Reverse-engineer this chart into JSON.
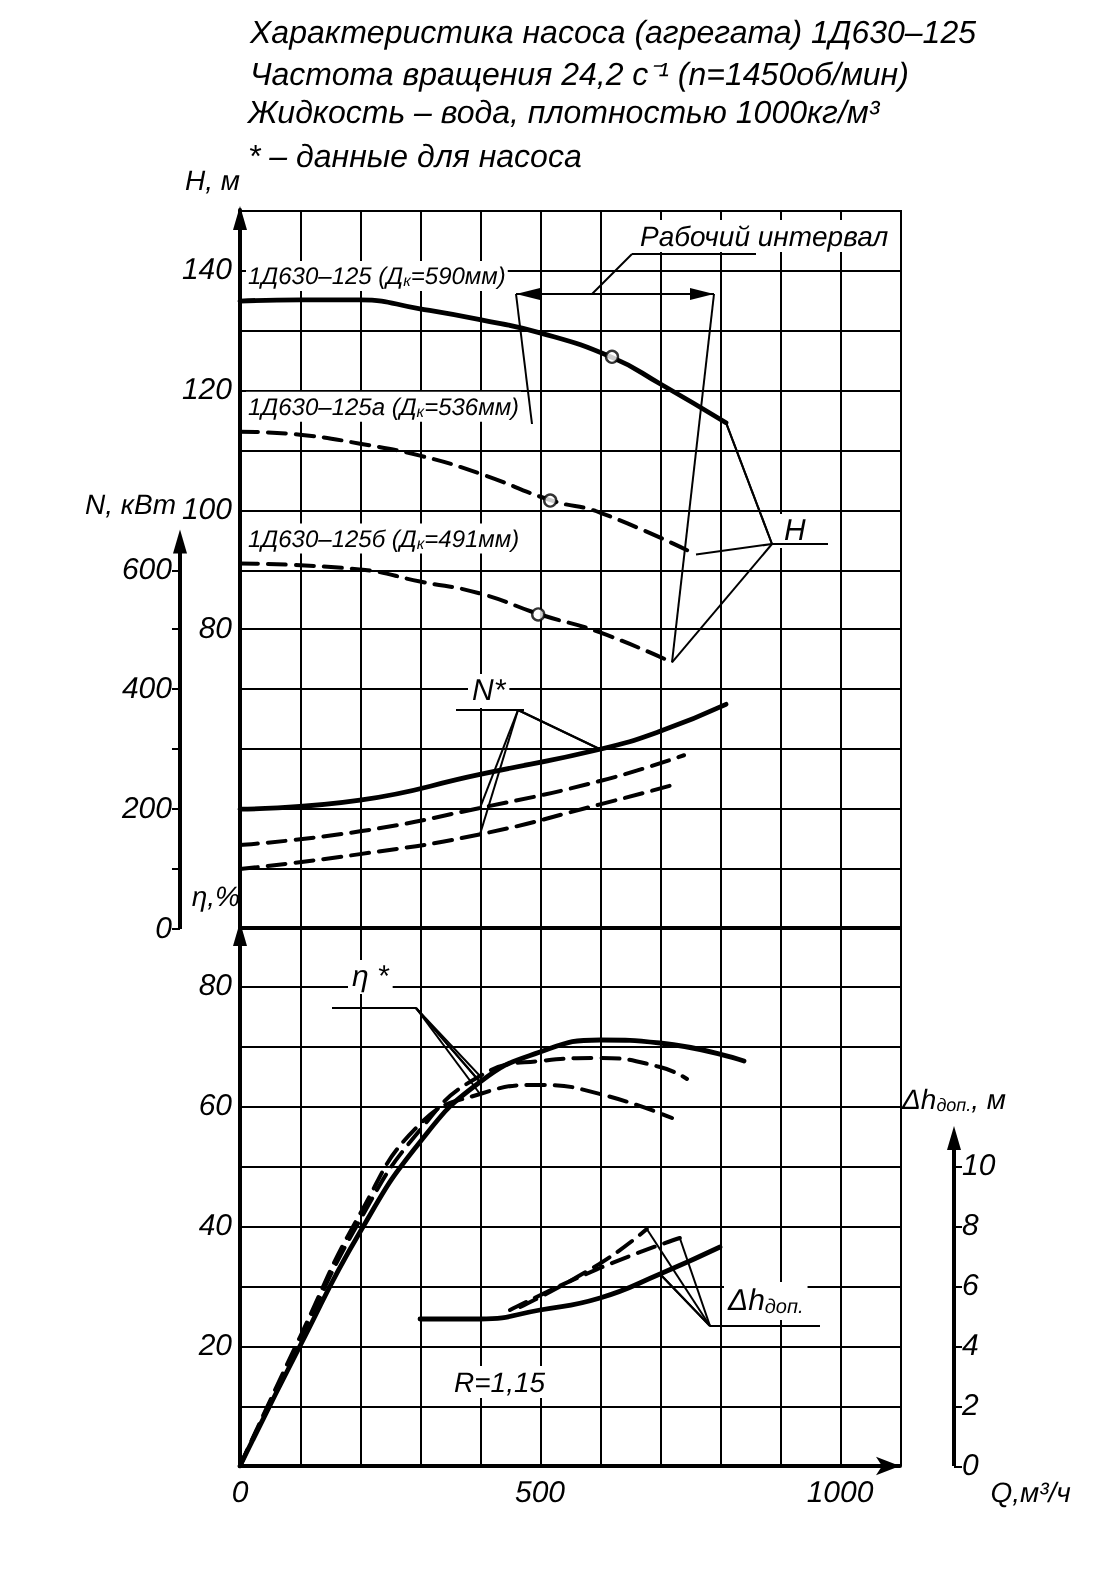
{
  "chart_data": [
    {
      "type": "line",
      "title": "Характеристика насоса (агрегата) 1Д630–125",
      "subtitle": "Частота вращения 24,2 с⁻¹ (n=1450об/мин)",
      "ylabel": "H, м",
      "y2label": "N, кВт",
      "annotations": [
        "Жидкость – вода, плотностью 1000кг/м³",
        "* – данные для насоса",
        "Рабочий интервал",
        {
          "text": "H",
          "x": 810,
          "y": 114.5
        },
        {
          "text": "N*",
          "x": 600,
          "y": 60
        }
      ],
      "xlim": [
        0,
        1100
      ],
      "xticks": [
        0,
        {
          "value": 100,
          "label": null
        },
        {
          "value": 200,
          "label": null
        },
        {
          "value": 300,
          "label": null
        },
        {
          "value": 400,
          "label": null
        },
        500,
        {
          "value": 600,
          "label": null
        },
        {
          "value": 700,
          "label": null
        },
        {
          "value": 800,
          "label": null
        },
        {
          "value": 900,
          "label": null
        },
        1000,
        {
          "value": 1100,
          "label": null
        }
      ],
      "tick_labels": "y",
      "ylim": [
        30,
        150
      ],
      "yticks": [
        {
          "value": 30,
          "label": null
        },
        {
          "value": 40,
          "label": null
        },
        {
          "value": 50,
          "label": null
        },
        {
          "value": 60,
          "label": null
        },
        {
          "value": 70,
          "label": null
        },
        80,
        {
          "value": 90,
          "label": null
        },
        100,
        {
          "value": 110,
          "label": null
        },
        120,
        {
          "value": 130,
          "label": null
        },
        140,
        {
          "value": 150,
          "label": null
        }
      ],
      "y2lim": [
        0,
        1200
      ],
      "y2ticks": [
        0,
        {
          "value": 100,
          "label": null
        },
        200,
        {
          "value": 300,
          "label": null
        },
        400,
        {
          "value": 500,
          "label": null
        },
        600
      ],
      "grid": true,
      "marker": "none",
      "series": [
        {
          "name": "1Д630–125 (Д$_{к}$=590мм)",
          "axis": "y",
          "color": "#000000",
          "line_style": "solid",
          "x": [
            0,
            100,
            200,
            300,
            400,
            500,
            620,
            700,
            810
          ],
          "values": [
            134.8,
            135,
            135,
            133.5,
            131.7,
            129.5,
            125.4,
            121,
            114.5
          ]
        },
        {
          "name": "1Д630–125а (Д$_{к}$=536мм)",
          "axis": "y",
          "color": "#000000",
          "line_style": "dashed",
          "x": [
            0,
            100,
            200,
            300,
            400,
            520,
            600,
            760
          ],
          "values": [
            113,
            112.5,
            111,
            109,
            106,
            101.5,
            99.5,
            92.5
          ]
        },
        {
          "name": "1Д630–125б (Д$_{к}$=491мм)",
          "axis": "y",
          "color": "#000000",
          "line_style": "dashed",
          "x": [
            0,
            200,
            300,
            400,
            500,
            600,
            720
          ],
          "values": [
            91,
            90,
            88,
            86,
            82.5,
            79.5,
            74.5
          ]
        },
        {
          "type": "scatter",
          "axis": "y",
          "color": "#000000",
          "marker": "circle",
          "x": [
            620,
            517,
            497
          ],
          "values": [
            125.5,
            101.5,
            82.5
          ]
        },
        {
          "axis": "y2",
          "color": "#000000",
          "line_style": "solid",
          "x": [
            0,
            200,
            400,
            600,
            700,
            810
          ],
          "values": [
            200,
            215,
            258,
            300,
            330,
            375
          ]
        },
        {
          "axis": "y2",
          "color": "#000000",
          "line_style": "dashed",
          "x": [
            0,
            200,
            400,
            600,
            740
          ],
          "values": [
            140,
            163,
            202,
            247,
            290
          ]
        },
        {
          "axis": "y2",
          "color": "#000000",
          "line_style": "dashed",
          "x": [
            0,
            200,
            400,
            600,
            720
          ],
          "values": [
            100,
            125,
            158,
            208,
            240
          ]
        }
      ]
    },
    {
      "type": "line",
      "xlabel": "Q,м³/ч",
      "ylabel": "η,%",
      "y2label": "Δh$_{доп.}$, м",
      "annotations": [
        {
          "text": "η *",
          "x": 400,
          "y": 64
        },
        {
          "text": "Δh$_{доп.}$",
          "x": 700,
          "y": 32
        },
        "R=1,15"
      ],
      "xlim": [
        0,
        1100
      ],
      "xticks": [
        0,
        {
          "value": 100,
          "label": null
        },
        {
          "value": 200,
          "label": null
        },
        {
          "value": 300,
          "label": null
        },
        {
          "value": 400,
          "label": null
        },
        500,
        {
          "value": 600,
          "label": null
        },
        {
          "value": 700,
          "label": null
        },
        {
          "value": 800,
          "label": null
        },
        {
          "value": 900,
          "label": null
        },
        1000,
        {
          "value": 1100,
          "label": null
        }
      ],
      "ylim": [
        0,
        90
      ],
      "yticks": [
        {
          "value": 0,
          "label": null
        },
        {
          "value": 10,
          "label": null
        },
        20,
        {
          "value": 30,
          "label": null
        },
        40,
        {
          "value": 50,
          "label": null
        },
        60,
        {
          "value": 70,
          "label": null
        },
        80,
        {
          "value": 90,
          "label": null
        }
      ],
      "y2lim": [
        0,
        18
      ],
      "y2ticks": [
        0,
        2,
        4,
        6,
        8,
        10
      ],
      "grid": true,
      "marker": "none",
      "series": [
        {
          "axis": "y",
          "color": "#000000",
          "line_style": "solid",
          "x": [
            0,
            100,
            200,
            300,
            400,
            500,
            600,
            700,
            840
          ],
          "values": [
            0,
            20,
            39,
            54,
            64,
            69,
            71,
            70.5,
            67.5
          ]
        },
        {
          "axis": "y",
          "color": "#000000",
          "line_style": "dashed",
          "x": [
            0,
            100,
            200,
            300,
            400,
            500,
            600,
            700,
            745
          ],
          "values": [
            0,
            21,
            41,
            56,
            65,
            67.5,
            68,
            66.5,
            64.5
          ]
        },
        {
          "axis": "y",
          "color": "#000000",
          "line_style": "dashed",
          "x": [
            0,
            100,
            200,
            300,
            400,
            500,
            600,
            720
          ],
          "values": [
            0,
            21.5,
            42,
            57,
            62,
            63.5,
            62,
            58
          ]
        },
        {
          "axis": "y2",
          "color": "#000000",
          "line_style": "solid",
          "x": [
            300,
            400,
            500,
            600,
            700,
            800
          ],
          "values": [
            4.9,
            4.9,
            5.2,
            5.6,
            6.4,
            7.3
          ]
        },
        {
          "axis": "y2",
          "color": "#000000",
          "line_style": "dashed",
          "x": [
            450,
            600,
            733
          ],
          "values": [
            5.2,
            6.6,
            7.6
          ]
        },
        {
          "axis": "y2",
          "color": "#000000",
          "line_style": "dashed",
          "x": [
            467,
            600,
            678
          ],
          "values": [
            5.3,
            6.75,
            7.9
          ]
        }
      ]
    }
  ]
}
